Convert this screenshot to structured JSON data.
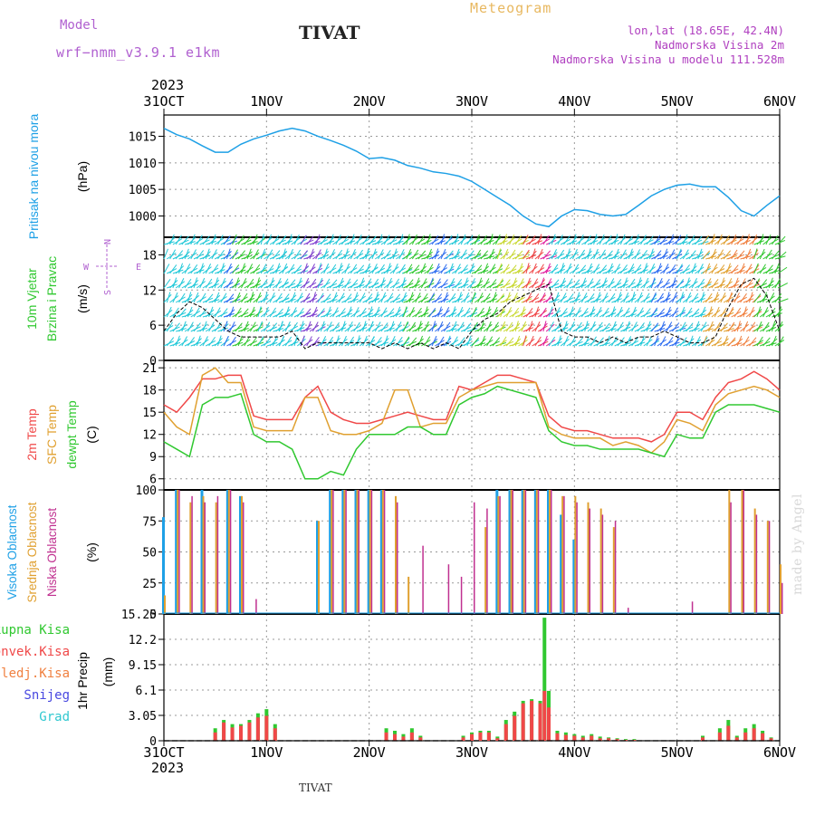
{
  "header": {
    "model_label": "Model",
    "model_name": "wrf−nmm_v3.9.1 e1km",
    "station": "TIVAT",
    "chart_kind": "Meteogram",
    "coords": "lon,lat (18.65E, 42.4N)",
    "elevation": "Nadmorska Visina 2m",
    "model_elevation": "Nadmorska Visina u modelu 111.528m",
    "credit": "made by Angel",
    "bottom_station": "TIVAT"
  },
  "colors": {
    "pressure": "#1ea0e6",
    "temp2m": "#f04848",
    "sfc": "#e0a030",
    "dewpt": "#30c830",
    "high_cloud": "#1ea0e6",
    "mid_cloud": "#e0a030",
    "low_cloud": "#c03090",
    "total_precip": "#30c830",
    "conv_precip": "#f04848",
    "frozen": "#f08040",
    "snow": "#4848e0",
    "graupel": "#30c8d0",
    "model": "#b060d0"
  },
  "chart_data": [
    {
      "type": "line",
      "panel": "pressure",
      "xlabels_top": [
        "31OCT",
        "1NOV",
        "2NOV",
        "3NOV",
        "4NOV",
        "5NOV",
        "6NOV"
      ],
      "year_label": "2023",
      "ylabel_name": "Pritisak na nivou mora",
      "ylabel_unit": "(hPa)",
      "yticks": [
        1000,
        1005,
        1010,
        1015
      ],
      "ylim": [
        996,
        1019
      ],
      "x_hours": [
        0,
        3,
        6,
        9,
        12,
        15,
        18,
        21,
        24,
        27,
        30,
        33,
        36,
        39,
        42,
        45,
        48,
        51,
        54,
        57,
        60,
        63,
        66,
        69,
        72,
        75,
        78,
        81,
        84,
        87,
        90,
        93,
        96,
        99,
        102,
        105,
        108,
        111,
        114,
        117,
        120,
        123,
        126,
        129,
        132,
        135,
        138,
        141,
        144
      ],
      "series": [
        {
          "values": [
            1016.5,
            1015.3,
            1014.5,
            1013.2,
            1012.0,
            1012.0,
            1013.5,
            1014.5,
            1015.2,
            1016.0,
            1016.5,
            1016.0,
            1015.0,
            1014.2,
            1013.3,
            1012.2,
            1010.8,
            1011.0,
            1010.5,
            1009.5,
            1009.0,
            1008.3,
            1008.0,
            1007.5,
            1006.5,
            1005.0,
            1003.5,
            1002.0,
            1000.0,
            998.5,
            998.0,
            1000.0,
            1001.2,
            1001.0,
            1000.3,
            1000.0,
            1000.3,
            1002.0,
            1003.8,
            1005.0,
            1005.8,
            1006.0,
            1005.5,
            1005.5,
            1003.5,
            1001.0,
            1000.0,
            1002.0,
            1003.8
          ]
        }
      ]
    },
    {
      "type": "line",
      "panel": "wind",
      "ylabel_name": "10m Vjetar",
      "ylabel_name2": "Brzina i Pravac",
      "ylabel_unit": "(m/s)",
      "compass": {
        "n": "N",
        "s": "S",
        "e": "E",
        "w": "W"
      },
      "yticks": [
        0,
        6,
        12,
        18
      ],
      "ylim": [
        0,
        21
      ],
      "x_hours": [
        0,
        3,
        6,
        9,
        12,
        15,
        18,
        21,
        24,
        27,
        30,
        33,
        36,
        39,
        42,
        45,
        48,
        51,
        54,
        57,
        60,
        63,
        66,
        69,
        72,
        75,
        78,
        81,
        84,
        87,
        90,
        93,
        96,
        99,
        102,
        105,
        108,
        111,
        114,
        117,
        120,
        123,
        126,
        129,
        132,
        135,
        138,
        141,
        144
      ],
      "series": [
        {
          "name": "speed",
          "values": [
            5,
            8,
            10,
            9,
            7,
            5,
            4,
            4,
            4,
            4,
            5,
            2,
            3,
            3,
            3,
            3,
            3,
            2,
            3,
            2,
            3,
            2,
            3,
            2,
            5,
            7,
            8,
            10,
            11,
            12,
            13,
            5,
            4,
            4,
            3,
            4,
            3,
            4,
            4,
            5,
            4,
            3,
            3,
            4,
            9,
            13,
            14,
            11,
            5
          ]
        }
      ]
    },
    {
      "type": "line",
      "panel": "temperature",
      "ylabel_name": "2m Temp",
      "ylabel_name2": "SFC Temp",
      "ylabel_name3": "dewpt Temp",
      "ylabel_unit": "(C)",
      "yticks": [
        6,
        9,
        12,
        15,
        18,
        21
      ],
      "ylim": [
        4.5,
        22
      ],
      "x_hours": [
        0,
        3,
        6,
        9,
        12,
        15,
        18,
        21,
        24,
        27,
        30,
        33,
        36,
        39,
        42,
        45,
        48,
        51,
        54,
        57,
        60,
        63,
        66,
        69,
        72,
        75,
        78,
        81,
        84,
        87,
        90,
        93,
        96,
        99,
        102,
        105,
        108,
        111,
        114,
        117,
        120,
        123,
        126,
        129,
        132,
        135,
        138,
        141,
        144
      ],
      "series": [
        {
          "name": "2m Temp",
          "values": [
            16,
            15,
            17,
            19.5,
            19.5,
            20,
            20,
            14.5,
            14,
            14,
            14,
            17,
            18.5,
            15,
            14,
            13.5,
            13.5,
            14,
            14.5,
            15,
            14.5,
            14,
            14,
            18.5,
            18,
            19,
            20,
            20,
            19.5,
            19,
            14.5,
            13,
            12.5,
            12.5,
            12,
            11.5,
            11.5,
            11.5,
            11,
            12,
            15,
            15,
            14,
            17,
            19,
            19.5,
            20.5,
            19.5,
            18
          ]
        },
        {
          "name": "SFC Temp",
          "values": [
            15,
            13,
            12,
            20,
            21,
            19,
            19,
            13,
            12.5,
            12.5,
            12.5,
            17,
            17,
            12.5,
            12,
            12,
            12.5,
            13.5,
            18,
            18,
            13,
            13.5,
            13.5,
            17,
            18,
            18.5,
            19,
            19,
            19,
            19,
            13,
            12,
            11.5,
            11.5,
            11.5,
            10.5,
            11,
            10.5,
            9.5,
            11,
            14,
            13.5,
            12.5,
            16,
            17.5,
            18,
            18.5,
            18,
            17
          ]
        },
        {
          "name": "dewpt Temp",
          "values": [
            11,
            10,
            9,
            16,
            17,
            17,
            17.5,
            12,
            11,
            11,
            10,
            6,
            6,
            7,
            6.5,
            10,
            12,
            12,
            12,
            13,
            13,
            12,
            12,
            16,
            17,
            17.5,
            18.5,
            18,
            17.5,
            17,
            12.5,
            11,
            10.5,
            10.5,
            10,
            10,
            10,
            10,
            9.5,
            9,
            12,
            11.5,
            11.5,
            15,
            16,
            16,
            16,
            15.5,
            15
          ]
        }
      ]
    },
    {
      "type": "bar",
      "panel": "cloud",
      "ylabel_name": "Visoka Oblacnost",
      "ylabel_name2": "Srednja Oblacnost",
      "ylabel_name3": "Niska Oblacnost",
      "ylabel_unit": "(%)",
      "yticks": [
        0,
        25,
        50,
        75,
        100
      ],
      "ylim": [
        0,
        100
      ],
      "x_hours": [
        0,
        3,
        6,
        9,
        12,
        15,
        18,
        21,
        24,
        27,
        30,
        33,
        36,
        39,
        42,
        45,
        48,
        51,
        54,
        57,
        60,
        63,
        66,
        69,
        72,
        75,
        78,
        81,
        84,
        87,
        90,
        93,
        96,
        99,
        102,
        105,
        108,
        111,
        114,
        117,
        120,
        123,
        126,
        129,
        132,
        135,
        138,
        141,
        144
      ],
      "series": [
        {
          "name": "Visoka Oblacnost",
          "values": [
            78,
            100,
            0,
            100,
            0,
            100,
            95,
            0,
            0,
            0,
            0,
            0,
            75,
            100,
            100,
            100,
            100,
            100,
            0,
            0,
            0,
            0,
            0,
            0,
            0,
            0,
            100,
            100,
            100,
            100,
            100,
            80,
            60,
            0,
            0,
            0,
            0,
            0,
            0,
            0,
            0,
            0,
            0,
            0,
            0,
            0,
            0,
            0,
            0
          ]
        },
        {
          "name": "Srednja Oblacnost",
          "values": [
            15,
            100,
            90,
            95,
            90,
            100,
            95,
            0,
            0,
            0,
            0,
            0,
            75,
            100,
            100,
            100,
            100,
            100,
            95,
            30,
            0,
            0,
            0,
            0,
            0,
            70,
            95,
            100,
            100,
            100,
            100,
            95,
            95,
            90,
            85,
            70,
            0,
            0,
            0,
            0,
            0,
            0,
            0,
            0,
            100,
            100,
            85,
            75,
            40
          ]
        },
        {
          "name": "Niska Oblacnost",
          "values": [
            0,
            100,
            95,
            90,
            95,
            100,
            90,
            12,
            0,
            0,
            0,
            0,
            0,
            100,
            100,
            100,
            100,
            100,
            90,
            0,
            55,
            0,
            40,
            30,
            90,
            85,
            95,
            100,
            100,
            100,
            100,
            95,
            90,
            85,
            80,
            75,
            5,
            0,
            0,
            0,
            0,
            10,
            0,
            0,
            90,
            100,
            80,
            75,
            25
          ]
        }
      ]
    },
    {
      "type": "bar",
      "panel": "precip",
      "legend": [
        "Ukupna Kisa",
        "Konvek.Kisa",
        "Zaledj.Kisa",
        "Snijeg",
        "Grad"
      ],
      "ylabel_name": "1hr Precip",
      "ylabel_unit": "(mm)",
      "xlabels_bottom": [
        "31OCT",
        "1NOV",
        "2NOV",
        "3NOV",
        "4NOV",
        "5NOV",
        "6NOV"
      ],
      "year_label": "2023",
      "yticks": [
        "0",
        "3.05",
        "6.1",
        "9.15",
        "12.2",
        "15.25"
      ],
      "ylim": [
        0,
        15.25
      ],
      "x_hours": [
        12,
        14,
        16,
        18,
        20,
        22,
        24,
        26,
        52,
        54,
        56,
        58,
        60,
        70,
        72,
        74,
        76,
        78,
        80,
        82,
        84,
        86,
        88,
        89,
        90,
        92,
        94,
        96,
        98,
        100,
        102,
        104,
        106,
        108,
        110,
        126,
        130,
        132,
        134,
        136,
        138,
        140,
        142
      ],
      "series": [
        {
          "name": "Ukupna Kisa",
          "values": [
            1.5,
            2.5,
            2.0,
            2.0,
            2.5,
            3.3,
            3.8,
            2.0,
            1.5,
            1.2,
            0.8,
            1.5,
            0.6,
            0.6,
            1.0,
            1.2,
            1.2,
            0.5,
            2.5,
            3.5,
            4.8,
            5.0,
            4.8,
            14.8,
            6.0,
            1.2,
            1.0,
            0.8,
            0.6,
            0.8,
            0.5,
            0.4,
            0.3,
            0.2,
            0.2,
            0.6,
            1.5,
            2.5,
            0.6,
            1.5,
            2.0,
            1.2,
            0.4
          ]
        },
        {
          "name": "Konvek.Kisa",
          "values": [
            1.0,
            2.2,
            1.6,
            1.8,
            2.2,
            2.8,
            3.0,
            1.5,
            1.0,
            0.8,
            0.5,
            1.0,
            0.4,
            0.4,
            0.8,
            1.0,
            1.0,
            0.3,
            2.0,
            3.0,
            4.5,
            4.8,
            4.5,
            6.0,
            4.0,
            0.9,
            0.7,
            0.6,
            0.4,
            0.6,
            0.3,
            0.3,
            0.2,
            0.1,
            0.1,
            0.4,
            1.0,
            1.8,
            0.4,
            1.0,
            1.5,
            0.9,
            0.3
          ]
        }
      ]
    }
  ]
}
